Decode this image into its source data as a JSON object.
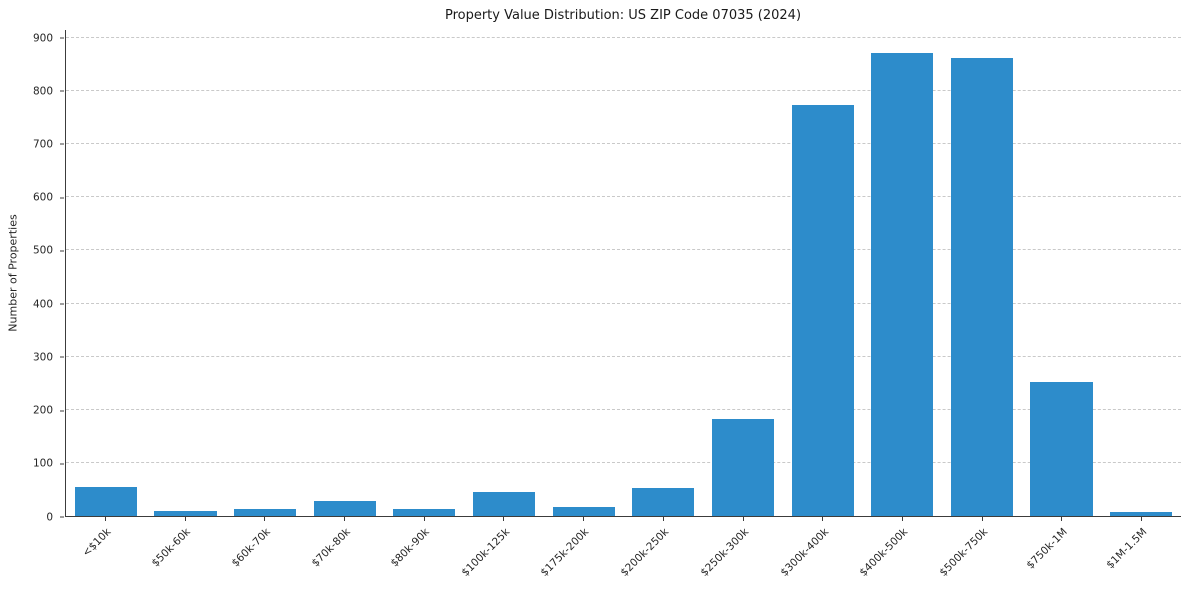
{
  "chart": {
    "title": "Property Value Distribution: US ZIP Code 07035 (2024)",
    "ylabel": "Number of Properties"
  },
  "chart_data": {
    "type": "bar",
    "title": "Property Value Distribution: US ZIP Code 07035 (2024)",
    "xlabel": "",
    "ylabel": "Number of Properties",
    "ylim": [
      0,
      900
    ],
    "yticks": [
      0,
      100,
      200,
      300,
      400,
      500,
      600,
      700,
      800,
      900
    ],
    "grid": "horizontal-dashed",
    "legend": "none",
    "bar_color": "#2d8ccb",
    "categories": [
      "<$10k",
      "$50k-60k",
      "$60k-70k",
      "$70k-80k",
      "$80k-90k",
      "$100k-125k",
      "$175k-200k",
      "$200k-250k",
      "$250k-300k",
      "$300k-400k",
      "$400k-500k",
      "$500k-750k",
      "$750k-1M",
      "$1M-1.5M"
    ],
    "values": [
      55,
      9,
      14,
      28,
      14,
      45,
      17,
      52,
      182,
      774,
      872,
      862,
      252,
      8
    ]
  }
}
